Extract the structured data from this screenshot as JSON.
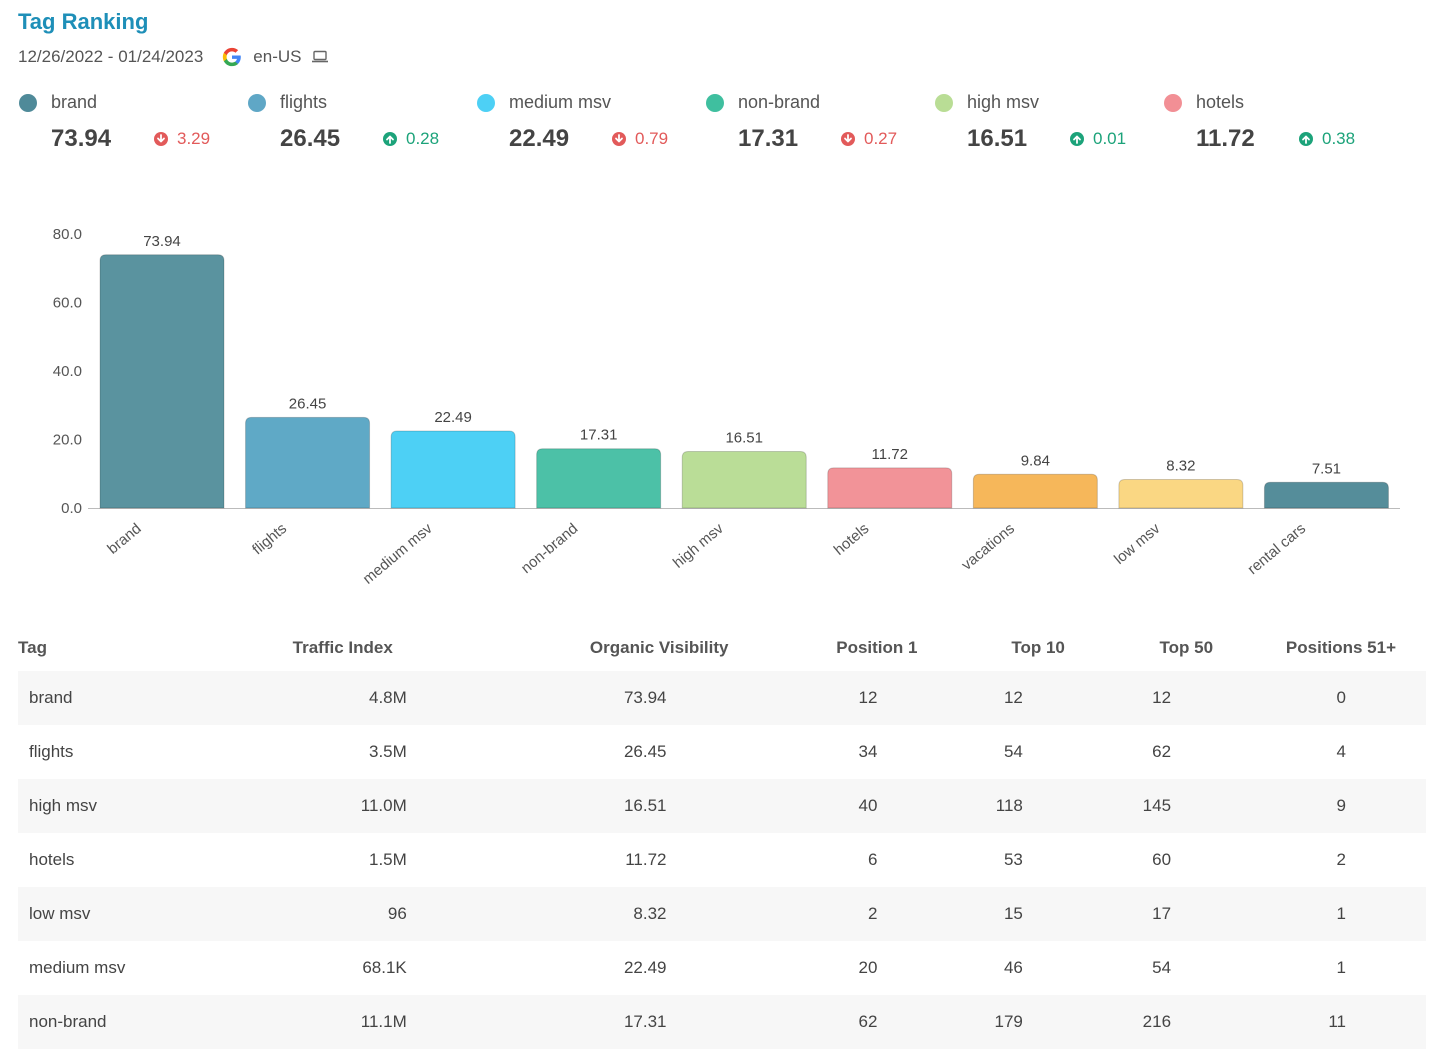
{
  "header": {
    "title": "Tag Ranking",
    "date_range": "12/26/2022 - 01/24/2023",
    "locale": "en-US",
    "engine_icon": "google-icon",
    "device_icon": "laptop-icon"
  },
  "kpis": [
    {
      "name": "brand",
      "color": "#4f8a99",
      "value": "73.94",
      "delta": "3.29",
      "direction": "down"
    },
    {
      "name": "flights",
      "color": "#5fa7c6",
      "value": "26.45",
      "delta": "0.28",
      "direction": "up"
    },
    {
      "name": "medium msv",
      "color": "#4dd0f5",
      "value": "22.49",
      "delta": "0.79",
      "direction": "down"
    },
    {
      "name": "non-brand",
      "color": "#3fbf9f",
      "value": "17.31",
      "delta": "0.27",
      "direction": "down"
    },
    {
      "name": "high msv",
      "color": "#b9dd95",
      "value": "16.51",
      "delta": "0.01",
      "direction": "up"
    },
    {
      "name": "hotels",
      "color": "#f28f95",
      "value": "11.72",
      "delta": "0.38",
      "direction": "up"
    }
  ],
  "chart_data": {
    "type": "bar",
    "categories": [
      "brand",
      "flights",
      "medium msv",
      "non-brand",
      "high msv",
      "hotels",
      "vacations",
      "low msv",
      "rental cars"
    ],
    "values": [
      73.94,
      26.45,
      22.49,
      17.31,
      16.51,
      11.72,
      9.84,
      8.32,
      7.51
    ],
    "value_labels": [
      "73.94",
      "26.45",
      "22.49",
      "17.31",
      "16.51",
      "11.72",
      "9.84",
      "8.32",
      "7.51"
    ],
    "colors": [
      "#5a939f",
      "#5fa9c6",
      "#4dd0f5",
      "#4cc1a7",
      "#badd97",
      "#f29398",
      "#f6b75a",
      "#fad783",
      "#558d9a"
    ],
    "yticks": [
      "80.0",
      "60.0",
      "40.0",
      "20.0",
      "0.0"
    ],
    "ylim": [
      0,
      80
    ],
    "title": "",
    "xlabel": "",
    "ylabel": "",
    "grid": false,
    "legend": false
  },
  "table": {
    "columns": [
      "Tag",
      "Traffic Index",
      "Organic Visibility",
      "Position 1",
      "Top 10",
      "Top 50",
      "Positions 51+"
    ],
    "rows": [
      [
        "brand",
        "4.8M",
        "73.94",
        "12",
        "12",
        "12",
        "0"
      ],
      [
        "flights",
        "3.5M",
        "26.45",
        "34",
        "54",
        "62",
        "4"
      ],
      [
        "high msv",
        "11.0M",
        "16.51",
        "40",
        "118",
        "145",
        "9"
      ],
      [
        "hotels",
        "1.5M",
        "11.72",
        "6",
        "53",
        "60",
        "2"
      ],
      [
        "low msv",
        "96",
        "8.32",
        "2",
        "15",
        "17",
        "1"
      ],
      [
        "medium msv",
        "68.1K",
        "22.49",
        "20",
        "46",
        "54",
        "1"
      ],
      [
        "non-brand",
        "11.1M",
        "17.31",
        "62",
        "179",
        "216",
        "11"
      ]
    ]
  }
}
